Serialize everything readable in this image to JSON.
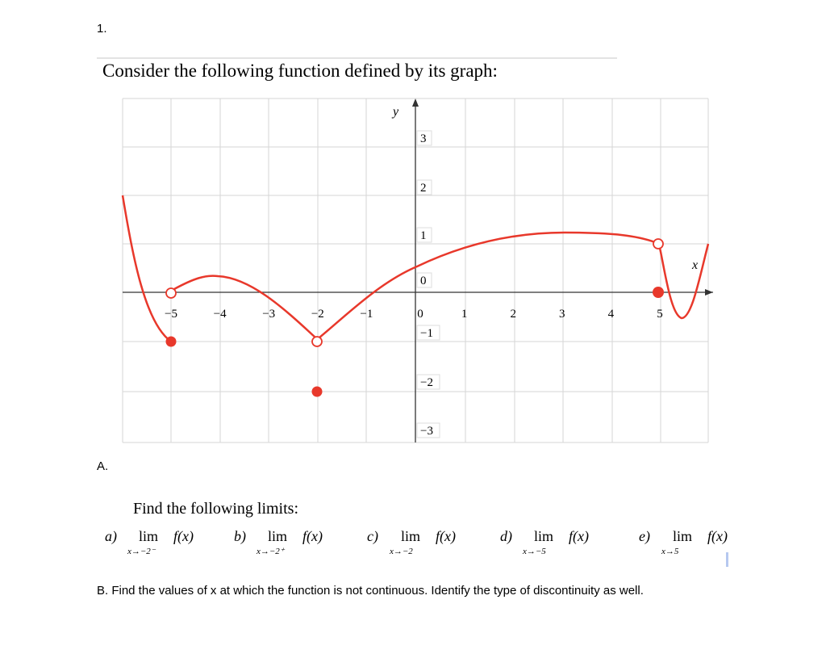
{
  "question_number": "1.",
  "heading": "Consider the following function defined by its graph:",
  "graph": {
    "x_label": "x",
    "y_label": "y",
    "x_ticks": [
      "−5",
      "−4",
      "−3",
      "−2",
      "−1",
      "0",
      "1",
      "2",
      "3",
      "4",
      "5"
    ],
    "y_ticks": [
      "3",
      "2",
      "1",
      "0",
      "−1",
      "−2",
      "−3"
    ]
  },
  "part_a": {
    "label": "A.",
    "prompt": "Find the following limits:",
    "items": [
      {
        "letter": "a)",
        "lim": "lim",
        "sub": "x→−2⁻",
        "func": "f(x)"
      },
      {
        "letter": "b)",
        "lim": "lim",
        "sub": "x→−2⁺",
        "func": "f(x)"
      },
      {
        "letter": "c)",
        "lim": "lim",
        "sub": "x→−2",
        "func": "f(x)"
      },
      {
        "letter": "d)",
        "lim": "lim",
        "sub": "x→−5",
        "func": "f(x)"
      },
      {
        "letter": "e)",
        "lim": "lim",
        "sub": "x→5",
        "func": "f(x)"
      }
    ]
  },
  "part_b": "B. Find the values of x at which the function is not continuous. Identify the type of discontinuity as well."
}
